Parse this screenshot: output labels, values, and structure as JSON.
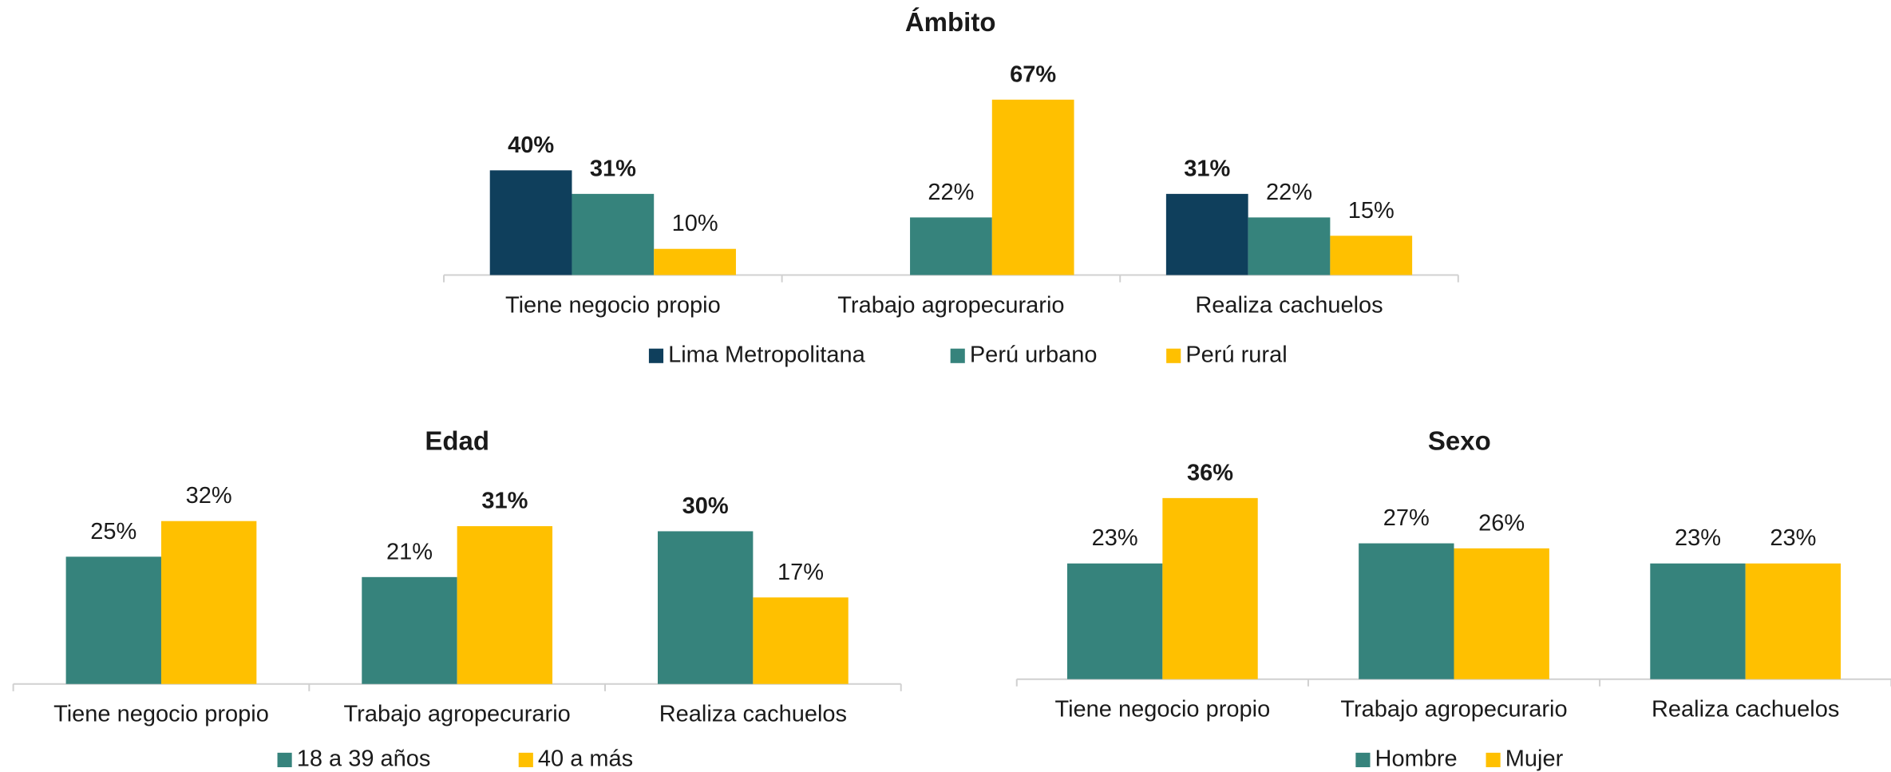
{
  "chart_data": [
    {
      "type": "bar",
      "title": "Ámbito",
      "categories": [
        "Tiene negocio propio",
        "Trabajo agropecurario",
        "Realiza cachuelos"
      ],
      "series": [
        {
          "name": "Lima Metropolitana",
          "color": "#0f3f5c",
          "values": [
            40,
            null,
            31
          ],
          "value_labels": [
            "40%",
            null,
            "31%"
          ],
          "bold": [
            true,
            false,
            true
          ]
        },
        {
          "name": "Perú urbano",
          "color": "#36837c",
          "values": [
            31,
            22,
            22
          ],
          "value_labels": [
            "31%",
            "22%",
            "22%"
          ],
          "bold": [
            true,
            false,
            false
          ]
        },
        {
          "name": "Perú rural",
          "color": "#ffc000",
          "values": [
            10,
            67,
            15
          ],
          "value_labels": [
            "10%",
            "67%",
            "15%"
          ],
          "bold": [
            false,
            true,
            false
          ]
        }
      ]
    },
    {
      "type": "bar",
      "title": "Edad",
      "categories": [
        "Tiene negocio propio",
        "Trabajo agropecurario",
        "Realiza cachuelos"
      ],
      "series": [
        {
          "name": "18 a 39 años",
          "color": "#36837c",
          "values": [
            25,
            21,
            30
          ],
          "value_labels": [
            "25%",
            "21%",
            "30%"
          ],
          "bold": [
            false,
            false,
            true
          ]
        },
        {
          "name": "40 a más",
          "color": "#ffc000",
          "values": [
            32,
            31,
            17
          ],
          "value_labels": [
            "32%",
            "31%",
            "17%"
          ],
          "bold": [
            false,
            true,
            false
          ]
        }
      ]
    },
    {
      "type": "bar",
      "title": "Sexo",
      "categories": [
        "Tiene negocio propio",
        "Trabajo agropecurario",
        "Realiza cachuelos"
      ],
      "series": [
        {
          "name": "Hombre",
          "color": "#36837c",
          "values": [
            23,
            27,
            23
          ],
          "value_labels": [
            "23%",
            "27%",
            "23%"
          ],
          "bold": [
            false,
            false,
            false
          ]
        },
        {
          "name": "Mujer",
          "color": "#ffc000",
          "values": [
            36,
            26,
            23
          ],
          "value_labels": [
            "36%",
            "26%",
            "23%"
          ],
          "bold": [
            true,
            false,
            false
          ]
        }
      ]
    }
  ]
}
